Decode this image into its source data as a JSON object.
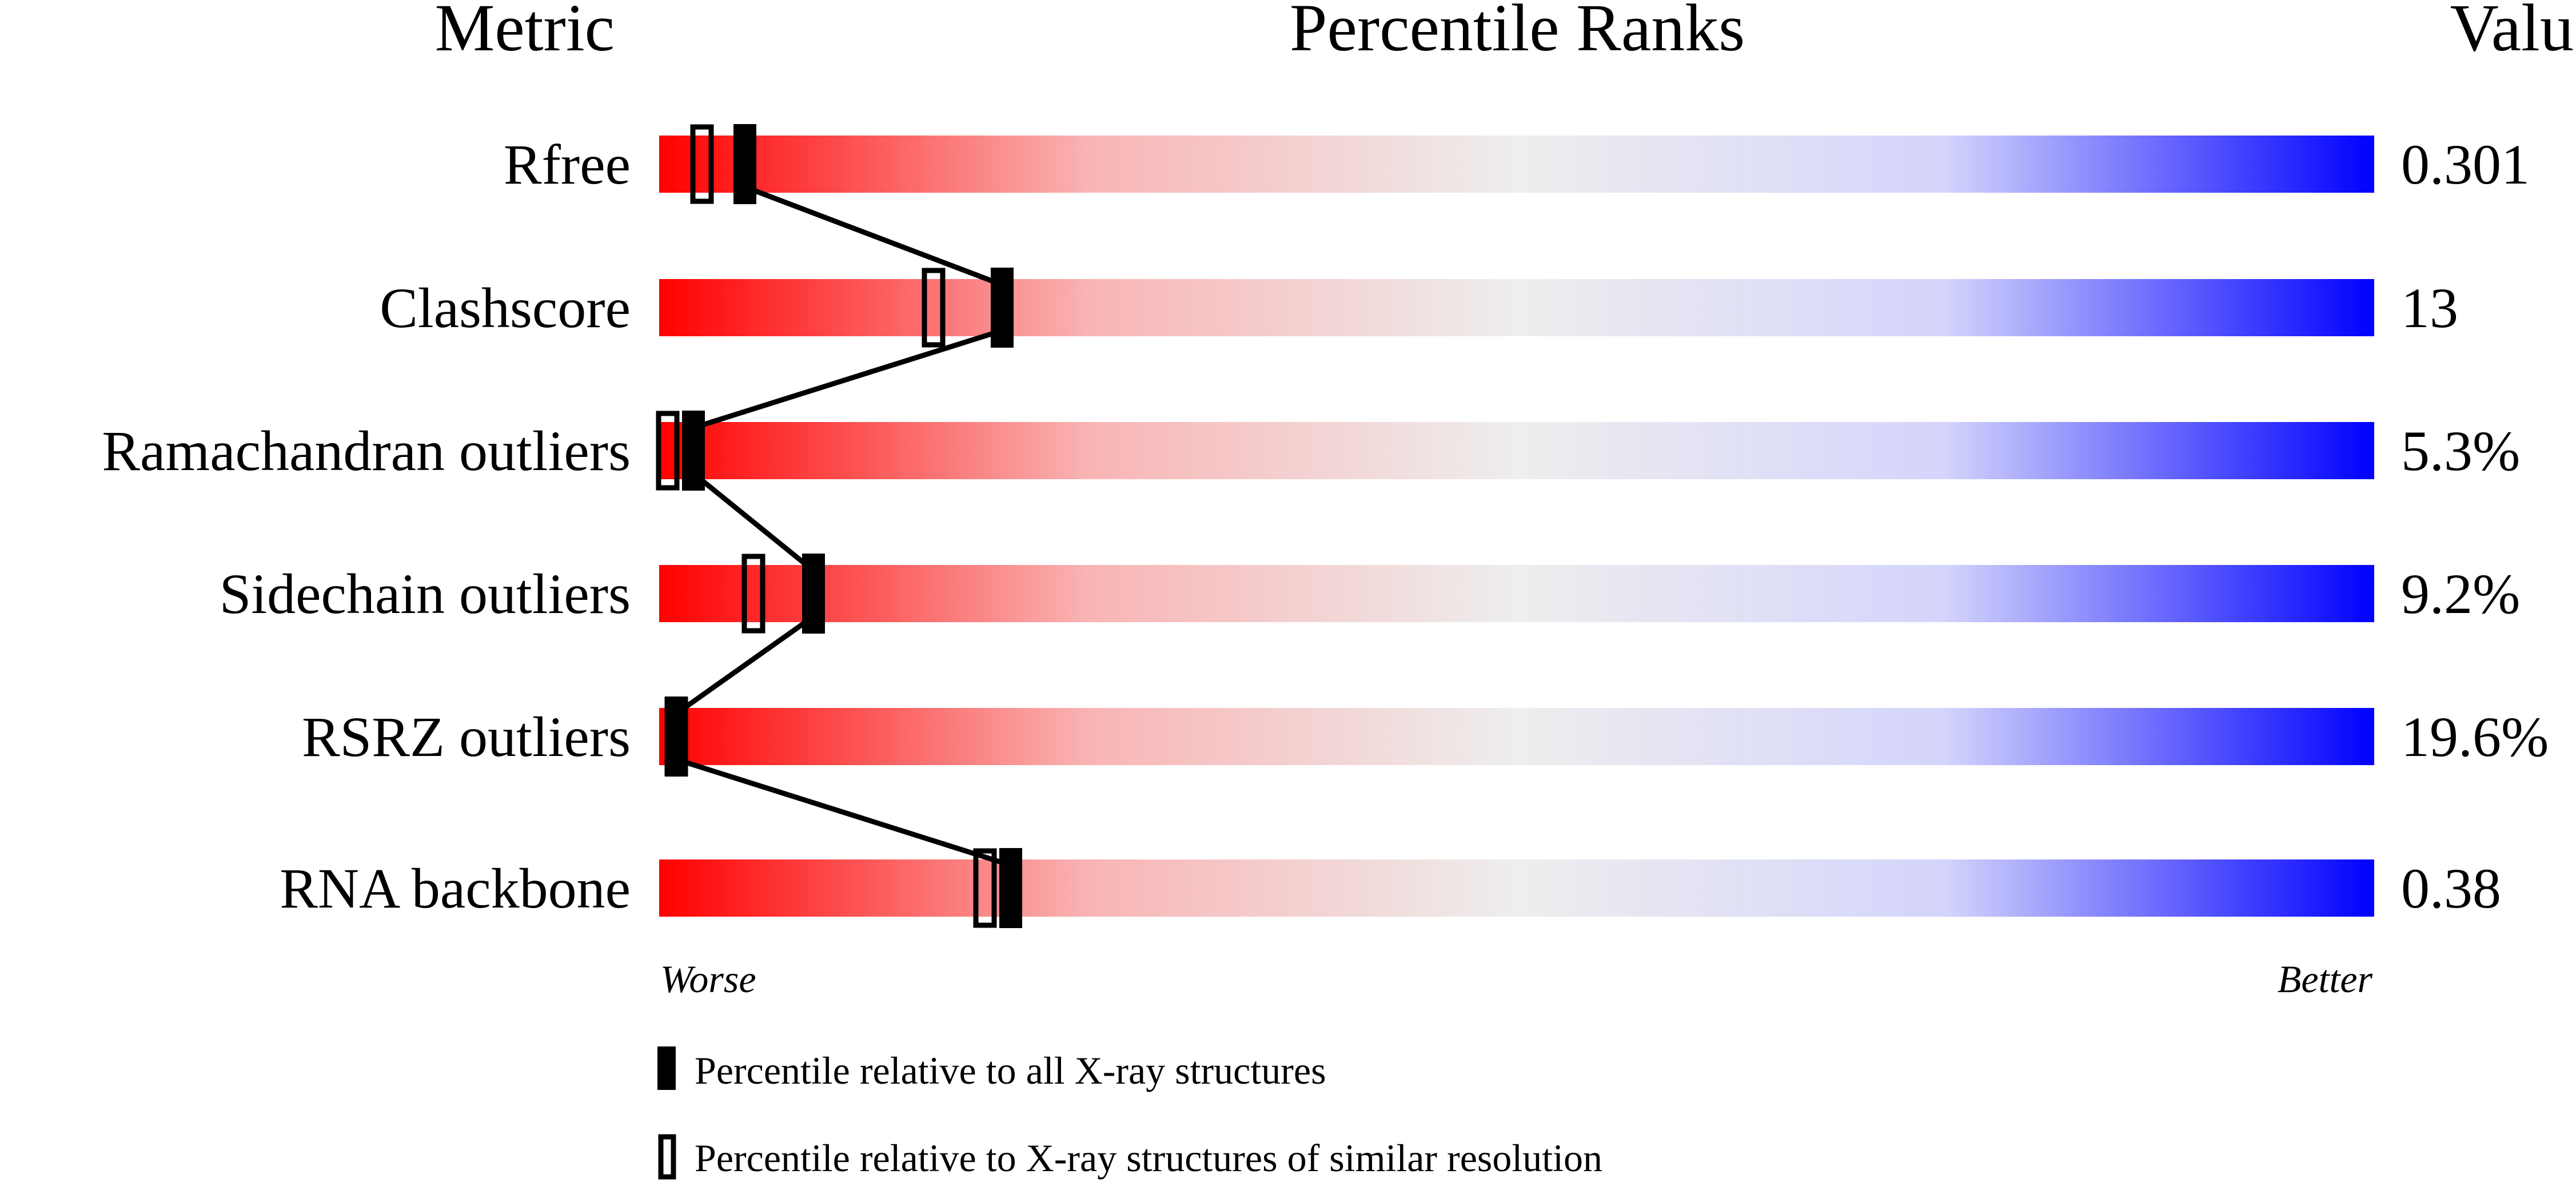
{
  "chart_data": {
    "type": "percentile-slider",
    "title": "Percentile Ranks",
    "column_headers": {
      "metric": "Metric",
      "ranks": "Percentile Ranks",
      "value": "Value"
    },
    "axis": {
      "left_label": "Worse",
      "right_label": "Better",
      "range": [
        0,
        100
      ]
    },
    "gradient_colors": [
      "#ff0000",
      "#f5c0c0",
      "#eeeeee",
      "#d0d0ff",
      "#0000ff"
    ],
    "metrics": [
      {
        "name": "Rfree",
        "value": "0.301",
        "percentile_all": 5,
        "percentile_similar": 2.5
      },
      {
        "name": "Clashscore",
        "value": "13",
        "percentile_all": 20,
        "percentile_similar": 16
      },
      {
        "name": "Ramachandran outliers",
        "value": "5.3%",
        "percentile_all": 2,
        "percentile_similar": 0.5
      },
      {
        "name": "Sidechain outliers",
        "value": "9.2%",
        "percentile_all": 9,
        "percentile_similar": 5.5
      },
      {
        "name": "RSRZ outliers",
        "value": "19.6%",
        "percentile_all": 1,
        "percentile_similar": 1
      },
      {
        "name": "RNA backbone",
        "value": "0.38",
        "percentile_all": 20.5,
        "percentile_similar": 19
      }
    ],
    "legend": [
      {
        "marker": "filled",
        "label": "Percentile relative to all X-ray structures"
      },
      {
        "marker": "open",
        "label": "Percentile relative to X-ray structures of similar resolution"
      }
    ]
  }
}
